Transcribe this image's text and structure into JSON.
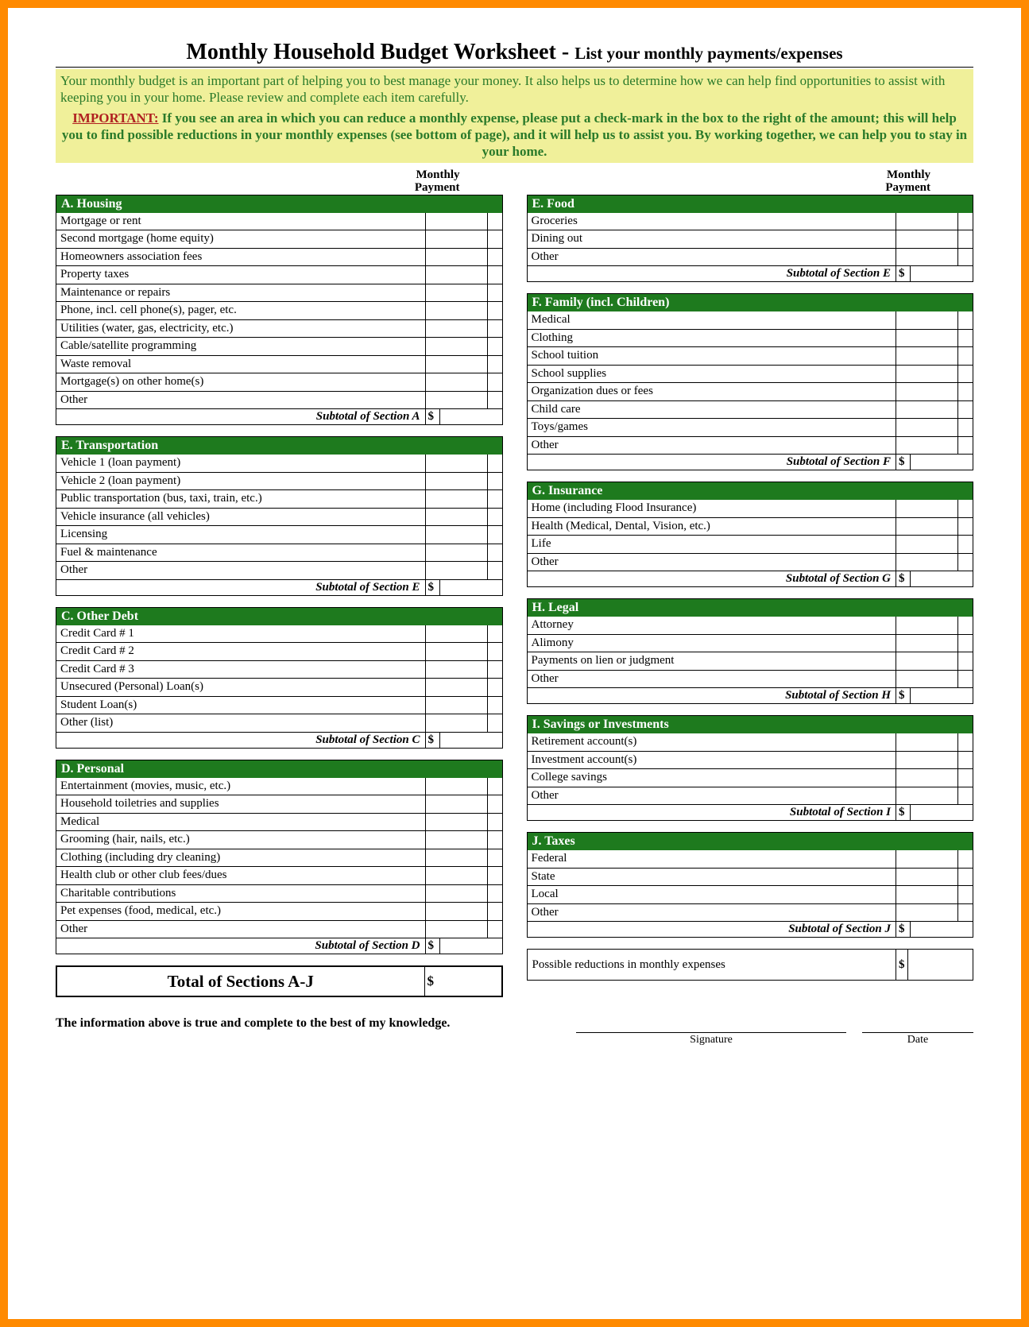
{
  "colors": {
    "frame": "#ff8a00",
    "section_header_bg": "#1e7a1e",
    "section_header_fg": "#ffffff",
    "intro_bg": "#f0f09a",
    "intro_text": "#2a7a2a",
    "important_text": "#b02020",
    "border": "#000000"
  },
  "title": {
    "main": "Monthly Household Budget Worksheet - ",
    "sub": "List your monthly payments/expenses"
  },
  "intro": {
    "line1": "Your monthly budget is an important part of helping you to best manage your money. It also helps us to determine how we can help find opportunities to assist with keeping you in your home. Please review and complete each item carefully.",
    "important_label": "IMPORTANT:",
    "line2": " If you see an area in which you can reduce a monthly expense, please put a check-mark in the box to the right of the amount; this will help you to find possible reductions in your monthly expenses (see bottom of page), and it will help us to assist you. By working together, we can help you to stay in your home."
  },
  "payment_header": "Monthly\nPayment",
  "left_sections": [
    {
      "header": "A. Housing",
      "items": [
        "Mortgage or rent",
        "Second mortgage (home equity)",
        "Homeowners association fees",
        "Property taxes",
        "Maintenance or repairs",
        "Phone, incl. cell phone(s), pager, etc.",
        "Utilities (water, gas, electricity, etc.)",
        "Cable/satellite programming",
        "Waste removal",
        "Mortgage(s) on other home(s)",
        "Other"
      ],
      "subtotal": "Subtotal of Section A"
    },
    {
      "header": "E. Transportation",
      "items": [
        "Vehicle 1 (loan payment)",
        "Vehicle 2 (loan payment)",
        "Public transportation (bus, taxi, train, etc.)",
        "Vehicle insurance (all vehicles)",
        "Licensing",
        "Fuel & maintenance",
        "Other"
      ],
      "subtotal": "Subtotal of Section E"
    },
    {
      "header": "C. Other Debt",
      "items": [
        "Credit Card # 1",
        "Credit Card # 2",
        "Credit Card # 3",
        "Unsecured (Personal) Loan(s)",
        "Student Loan(s)",
        "Other (list)"
      ],
      "subtotal": "Subtotal of Section C"
    },
    {
      "header": "D. Personal",
      "items": [
        "Entertainment (movies, music, etc.)",
        "Household toiletries and supplies",
        "Medical",
        "Grooming (hair, nails, etc.)",
        "Clothing (including dry cleaning)",
        "Health club or other club fees/dues",
        "Charitable contributions",
        "Pet expenses (food, medical, etc.)",
        "Other"
      ],
      "subtotal": "Subtotal of Section D"
    }
  ],
  "right_sections": [
    {
      "header": "E. Food",
      "items": [
        "Groceries",
        "Dining out",
        "Other"
      ],
      "subtotal": "Subtotal of Section E"
    },
    {
      "header": "F. Family (incl. Children)",
      "items": [
        "Medical",
        "Clothing",
        "School tuition",
        "School supplies",
        "Organization dues or fees",
        "Child care",
        "Toys/games",
        "Other"
      ],
      "subtotal": "Subtotal of Section F"
    },
    {
      "header": "G. Insurance",
      "items": [
        "Home (including Flood Insurance)",
        "Health (Medical, Dental, Vision, etc.)",
        "Life",
        "Other"
      ],
      "subtotal": "Subtotal of Section G"
    },
    {
      "header": "H. Legal",
      "items": [
        "Attorney",
        "Alimony",
        "Payments on lien or judgment",
        "Other"
      ],
      "subtotal": "Subtotal of Section H"
    },
    {
      "header": "I. Savings or Investments",
      "items": [
        "Retirement account(s)",
        "Investment account(s)",
        "College savings",
        "Other"
      ],
      "subtotal": "Subtotal of Section I"
    },
    {
      "header": "J. Taxes",
      "items": [
        "Federal",
        "State",
        "Local",
        "Other"
      ],
      "subtotal": "Subtotal of Section J"
    }
  ],
  "total_label": "Total of Sections A-J",
  "dollar": "$",
  "reductions_label": "Possible reductions in monthly expenses",
  "attestation": "The information above is true and complete to the best of my knowledge.",
  "signature_label": "Signature",
  "date_label": "Date"
}
